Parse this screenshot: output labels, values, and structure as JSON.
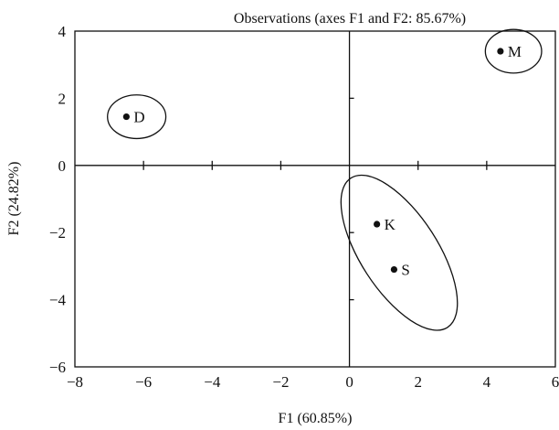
{
  "chart_data": {
    "type": "scatter",
    "title": "Observations (axes F1 and F2: 85.67%)",
    "xlabel": "F1 (60.85%)",
    "ylabel": "F2 (24.82%)",
    "xlim": [
      -8,
      6
    ],
    "ylim": [
      -6,
      4
    ],
    "xticks": [
      -8,
      -6,
      -4,
      -2,
      0,
      2,
      4,
      6
    ],
    "yticks": [
      -6,
      -4,
      -2,
      0,
      2,
      4
    ],
    "xtick_labels": [
      "−8",
      "−6",
      "−4",
      "−2",
      "0",
      "2",
      "4",
      "6"
    ],
    "ytick_labels": [
      "−6",
      "−4",
      "−2",
      "0",
      "2",
      "4"
    ],
    "points": [
      {
        "label": "D",
        "x": -6.5,
        "y": 1.45
      },
      {
        "label": "M",
        "x": 4.4,
        "y": 3.4
      },
      {
        "label": "K",
        "x": 0.8,
        "y": -1.75
      },
      {
        "label": "S",
        "x": 1.3,
        "y": -3.1
      }
    ],
    "groups": [
      {
        "members": [
          "D"
        ],
        "center": [
          -6.2,
          1.45
        ],
        "rx": 0.85,
        "ry": 0.65,
        "angle": 0
      },
      {
        "members": [
          "M"
        ],
        "center": [
          4.78,
          3.4
        ],
        "rx": 0.82,
        "ry": 0.65,
        "angle": 0
      },
      {
        "members": [
          "K",
          "S"
        ],
        "center": [
          1.45,
          -2.6
        ],
        "rx": 2.65,
        "ry": 1.15,
        "angle": 57
      }
    ],
    "grid": false,
    "legend": "none"
  }
}
